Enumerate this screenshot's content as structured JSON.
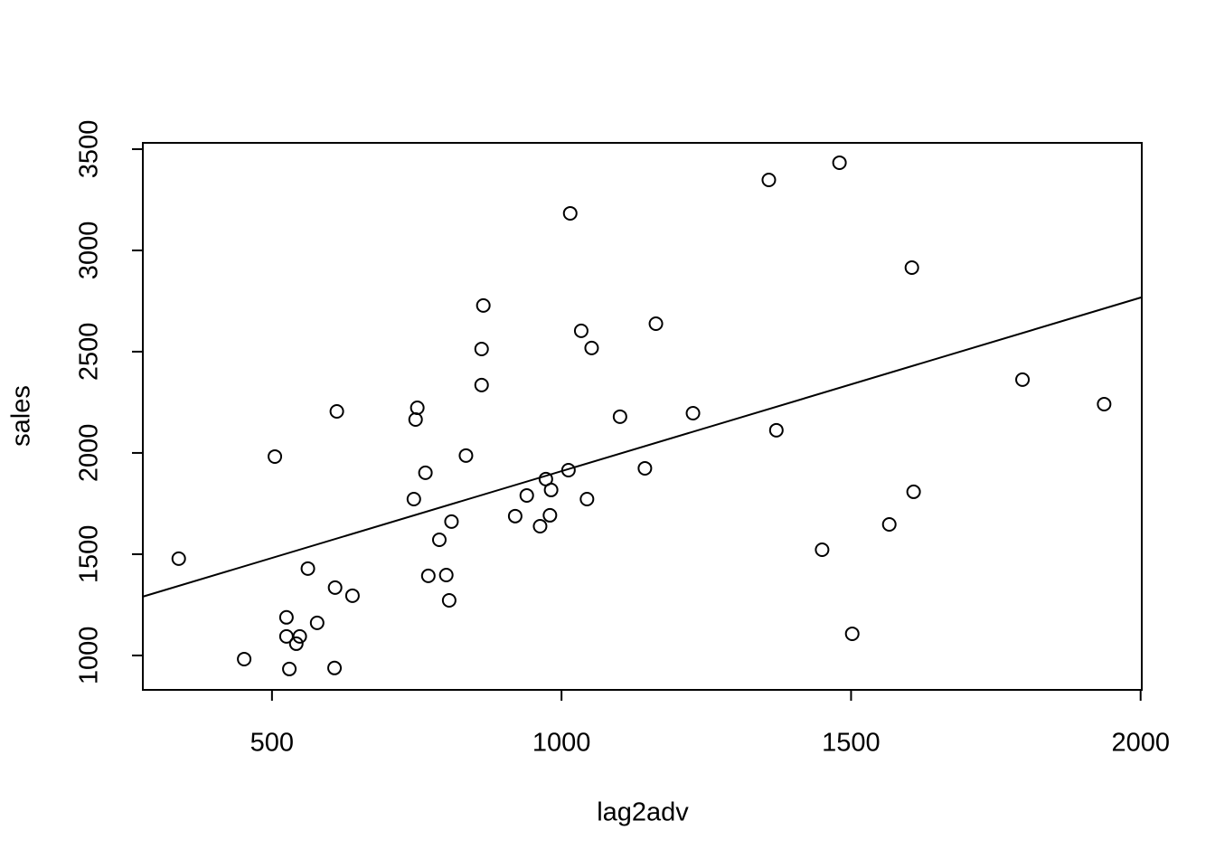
{
  "chart_data": {
    "type": "scatter",
    "x_label": "lag2adv",
    "y_label": "sales",
    "x": [
      339,
      452,
      505,
      525,
      525,
      530,
      542,
      548,
      562,
      578,
      608,
      609,
      612,
      639,
      745,
      748,
      751,
      765,
      770,
      789,
      801,
      806,
      810,
      835,
      862,
      862,
      865,
      920,
      940,
      963,
      973,
      980,
      982,
      1012,
      1015,
      1034,
      1044,
      1052,
      1101,
      1144,
      1163,
      1227,
      1358,
      1371,
      1450,
      1480,
      1502,
      1566,
      1605,
      1608,
      1796,
      1937
    ],
    "values": [
      1478,
      982,
      1982,
      1188,
      1094,
      933,
      1058,
      1094,
      1429,
      1161,
      938,
      1335,
      2205,
      1295,
      1772,
      2165,
      2223,
      1902,
      1393,
      1571,
      1397,
      1272,
      1661,
      1987,
      2335,
      2513,
      2728,
      1688,
      1790,
      1638,
      1871,
      1692,
      1817,
      1915,
      3183,
      2603,
      1772,
      2518,
      2179,
      1924,
      2638,
      2196,
      3348,
      2112,
      1522,
      3433,
      1107,
      1647,
      2915,
      1808,
      2362,
      2241
    ],
    "color": "#000000",
    "fit_line": {
      "intercept": 1053,
      "slope": 0.857
    },
    "xlim": [
      277,
      2002
    ],
    "ylim": [
      830,
      3531
    ],
    "xticks": [
      500,
      1000,
      1500,
      2000
    ],
    "yticks": [
      1000,
      1500,
      2000,
      2500,
      3000,
      3500
    ]
  }
}
